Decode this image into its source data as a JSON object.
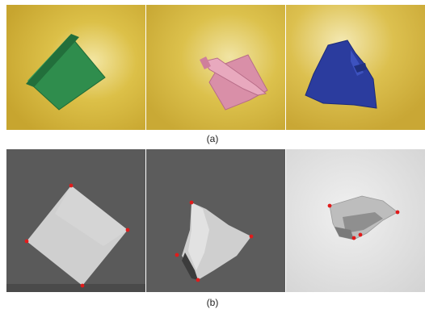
{
  "figure": {
    "row_a": {
      "caption": "(a)",
      "panels": [
        {
          "name": "green-cloth",
          "background": "#d8b93c",
          "cloth_color": "#2e8a4c"
        },
        {
          "name": "pink-cloth",
          "background": "#d9bd43",
          "cloth_color": "#d98fa8"
        },
        {
          "name": "blue-cloth",
          "background": "#d4b63d",
          "cloth_color": "#2b3c9e"
        }
      ]
    },
    "row_b": {
      "caption": "(b)",
      "panels": [
        {
          "name": "flat-square-depth",
          "background": "#5a5a5a",
          "cloth_color": "#c9c9c9"
        },
        {
          "name": "crumpled-depth",
          "background": "#5c5c5c",
          "cloth_color": "#cfcfcf"
        },
        {
          "name": "twisted-depth",
          "background": "#dcdcdc",
          "cloth_color": "#bdbdbd"
        }
      ],
      "keypoint_color": "#e01b1b"
    }
  }
}
